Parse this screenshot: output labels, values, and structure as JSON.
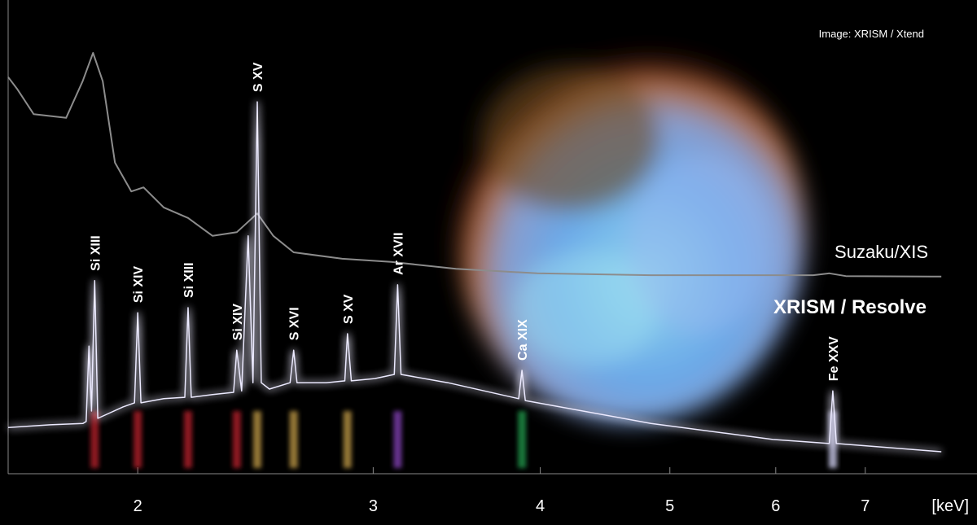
{
  "chart_data": {
    "type": "line",
    "credit": "Image: XRISM / Xtend",
    "x_unit": "[keV]",
    "xscale": "log",
    "xlim": [
      1.6,
      8.0
    ],
    "xticks": [
      2,
      3,
      4,
      5,
      6,
      7
    ],
    "ylim": [
      0,
      100
    ],
    "series": [
      {
        "name": "Suzaku/XIS",
        "color": "#8c8c8c",
        "x": [
          1.6,
          1.626,
          1.672,
          1.768,
          1.819,
          1.852,
          1.883,
          1.923,
          1.978,
          2.02,
          2.092,
          2.181,
          2.275,
          2.372,
          2.457,
          2.526,
          2.616,
          2.845,
          3.094,
          3.46,
          3.98,
          4.84,
          6.4,
          6.58,
          6.77,
          7.98
        ],
        "values": [
          86.7,
          84.0,
          78.6,
          77.8,
          85.8,
          92.0,
          85.8,
          68.0,
          61.7,
          62.6,
          58.2,
          55.9,
          52.0,
          52.8,
          56.9,
          52.0,
          48.4,
          47.0,
          46.3,
          44.8,
          43.8,
          43.4,
          43.4,
          43.8,
          43.2,
          43.1
        ]
      },
      {
        "name": "XRISM / Resolve",
        "color": "#eceaff",
        "x": [
          1.6,
          1.72,
          1.82,
          1.83,
          1.839,
          1.847,
          1.857,
          1.867,
          1.95,
          1.989,
          2.0,
          2.011,
          2.092,
          2.169,
          2.181,
          2.193,
          2.275,
          2.359,
          2.372,
          2.392,
          2.419,
          2.439,
          2.457,
          2.474,
          2.509,
          2.6,
          2.616,
          2.631,
          2.767,
          2.857,
          2.87,
          2.889,
          3.008,
          3.111,
          3.129,
          3.147,
          3.412,
          3.854,
          3.876,
          3.898,
          4.84,
          5.97,
          6.58,
          6.62,
          6.66,
          7.98
        ],
        "values": [
          10.1,
          10.7,
          11.0,
          11.4,
          27.9,
          13.7,
          42.2,
          12.1,
          14.6,
          15.5,
          35.2,
          15.5,
          16.4,
          16.7,
          36.3,
          16.7,
          17.3,
          17.8,
          27.0,
          18.1,
          52.0,
          19.9,
          81.3,
          19.9,
          18.5,
          19.9,
          27.0,
          19.9,
          19.9,
          20.3,
          30.6,
          20.3,
          20.8,
          21.7,
          41.3,
          21.7,
          19.9,
          16.4,
          22.6,
          16.0,
          11.0,
          7.5,
          6.6,
          18.1,
          6.6,
          4.8
        ]
      }
    ],
    "annotations": [
      {
        "text": "Si XIII",
        "x": 1.857,
        "color": "#c0202e"
      },
      {
        "text": "Si XIV",
        "x": 2.0,
        "color": "#c0202e"
      },
      {
        "text": "Si XIII",
        "x": 2.181,
        "color": "#c0202e"
      },
      {
        "text": "Si XIV",
        "x": 2.372,
        "color": "#c0202e"
      },
      {
        "text": "S XV",
        "x": 2.457,
        "color": "#c8a048"
      },
      {
        "text": "S XVI",
        "x": 2.616,
        "color": "#c8a048"
      },
      {
        "text": "S XV",
        "x": 2.87,
        "color": "#c8a048"
      },
      {
        "text": "Ar XVII",
        "x": 3.129,
        "color": "#8a44c0"
      },
      {
        "text": "Ca XIX",
        "x": 3.876,
        "color": "#20a050"
      },
      {
        "text": "Fe XXV",
        "x": 6.62,
        "color": "#dcdcff"
      }
    ]
  }
}
